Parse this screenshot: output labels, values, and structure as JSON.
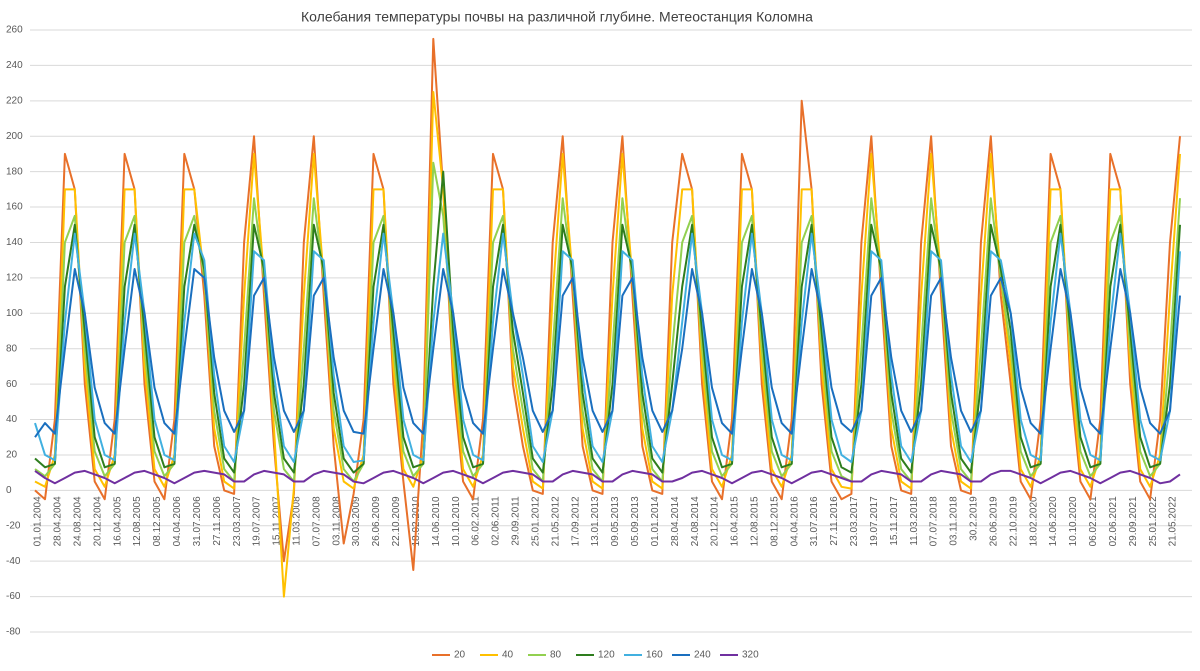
{
  "chart_data": {
    "type": "line",
    "title": "Колебания температуры почвы на различной глубине. Метеостанция Коломна",
    "categories": [
      "01.01.2004",
      null,
      "28.04.2004",
      null,
      "24.08.2004",
      null,
      "20.12.2004",
      null,
      "16.04.2005",
      null,
      "12.08.2005",
      null,
      "08.12.2005",
      null,
      "04.04.2006",
      null,
      "31.07.2006",
      null,
      "27.11.2006",
      null,
      "23.03.2007",
      null,
      "19.07.2007",
      null,
      "15.11.2007",
      null,
      "11.03.2008",
      null,
      "07.07.2008",
      null,
      "03.11.2008",
      null,
      "30.03.2009",
      null,
      "26.06.2009",
      null,
      "22.10.2009",
      null,
      "18.02.2010",
      null,
      "14.06.2010",
      null,
      "10.10.2010",
      null,
      "06.02.2011",
      null,
      "02.06.2011",
      null,
      "29.09.2011",
      null,
      "25.01.2012",
      null,
      "21.05.2012",
      null,
      "17.09.2012",
      null,
      "13.01.2013",
      null,
      "09.05.2013",
      null,
      "05.09.2013",
      null,
      "01.01.2014",
      null,
      "28.04.2014",
      null,
      "24.08.2014",
      null,
      "20.12.2014",
      null,
      "16.04.2015",
      null,
      "12.08.2015",
      null,
      "08.12.2015",
      null,
      "04.04.2016",
      null,
      "31.07.2016",
      null,
      "27.11.2016",
      null,
      "23.03.2017",
      null,
      "19.07.2017",
      null,
      "15.11.2017",
      null,
      "11.03.2018",
      null,
      "07.07.2018",
      null,
      "03.11.2018",
      null,
      "30.2.2019",
      null,
      "26.06.2019",
      null,
      "22.10.2019",
      null,
      "18.02.2020",
      null,
      "14.06.2020",
      null,
      "10.10.2020",
      null,
      "06.02.2021",
      null,
      "02.06.2021",
      null,
      "29.09.2021",
      null,
      "25.01.2022",
      null,
      "21.05.2022",
      null
    ],
    "series": [
      {
        "name": "20",
        "color": "#e8702a",
        "values": [
          0,
          -5,
          40,
          190,
          170,
          60,
          5,
          -5,
          40,
          190,
          170,
          60,
          5,
          -5,
          40,
          190,
          170,
          110,
          25,
          0,
          -2,
          140,
          200,
          110,
          25,
          -40,
          -2,
          140,
          200,
          110,
          25,
          -30,
          -2,
          40,
          190,
          170,
          60,
          5,
          -45,
          40,
          255,
          170,
          60,
          5,
          -5,
          40,
          190,
          170,
          60,
          25,
          0,
          -2,
          140,
          200,
          110,
          25,
          0,
          -2,
          140,
          200,
          110,
          25,
          0,
          -2,
          140,
          190,
          170,
          60,
          5,
          -5,
          40,
          190,
          170,
          60,
          5,
          -5,
          40,
          220,
          170,
          60,
          5,
          -5,
          -2,
          140,
          200,
          110,
          25,
          0,
          -2,
          140,
          200,
          110,
          25,
          0,
          -2,
          140,
          200,
          110,
          60,
          5,
          -5,
          40,
          190,
          170,
          60,
          5,
          -5,
          40,
          190,
          170,
          60,
          5,
          -5,
          40,
          140,
          200
        ]
      },
      {
        "name": "40",
        "color": "#ffc000",
        "values": [
          5,
          2,
          20,
          170,
          170,
          70,
          12,
          2,
          20,
          170,
          170,
          70,
          12,
          2,
          20,
          170,
          170,
          120,
          35,
          5,
          1,
          110,
          190,
          120,
          35,
          -60,
          1,
          110,
          190,
          120,
          35,
          5,
          1,
          20,
          170,
          170,
          70,
          12,
          2,
          20,
          225,
          170,
          70,
          12,
          2,
          20,
          170,
          170,
          70,
          35,
          5,
          1,
          110,
          190,
          120,
          35,
          5,
          1,
          110,
          190,
          120,
          35,
          5,
          1,
          110,
          170,
          170,
          70,
          12,
          2,
          20,
          170,
          170,
          70,
          12,
          2,
          20,
          170,
          170,
          70,
          12,
          2,
          1,
          110,
          190,
          120,
          35,
          5,
          1,
          110,
          190,
          120,
          35,
          5,
          1,
          110,
          190,
          120,
          70,
          12,
          2,
          20,
          170,
          170,
          70,
          12,
          2,
          20,
          170,
          170,
          70,
          12,
          2,
          20,
          110,
          190
        ]
      },
      {
        "name": "80",
        "color": "#92d050",
        "values": [
          12,
          8,
          15,
          140,
          155,
          80,
          22,
          8,
          15,
          140,
          155,
          80,
          22,
          8,
          15,
          140,
          155,
          120,
          45,
          12,
          5,
          80,
          165,
          120,
          45,
          12,
          5,
          80,
          165,
          120,
          45,
          12,
          5,
          15,
          140,
          155,
          80,
          22,
          8,
          15,
          185,
          155,
          80,
          22,
          8,
          15,
          140,
          155,
          80,
          45,
          12,
          5,
          80,
          165,
          120,
          45,
          12,
          5,
          80,
          165,
          120,
          45,
          12,
          5,
          80,
          140,
          155,
          80,
          22,
          8,
          15,
          140,
          155,
          80,
          22,
          8,
          15,
          140,
          155,
          80,
          22,
          8,
          5,
          80,
          165,
          120,
          45,
          12,
          5,
          80,
          165,
          120,
          45,
          12,
          5,
          80,
          165,
          120,
          80,
          22,
          8,
          15,
          140,
          155,
          80,
          22,
          8,
          15,
          140,
          155,
          80,
          22,
          8,
          15,
          80,
          165
        ]
      },
      {
        "name": "120",
        "color": "#2e7d1e",
        "values": [
          18,
          13,
          15,
          115,
          150,
          90,
          30,
          13,
          15,
          115,
          150,
          90,
          30,
          13,
          15,
          115,
          150,
          125,
          55,
          18,
          10,
          60,
          150,
          125,
          55,
          18,
          10,
          60,
          150,
          125,
          55,
          18,
          10,
          15,
          115,
          150,
          90,
          30,
          13,
          15,
          115,
          180,
          90,
          30,
          13,
          15,
          115,
          150,
          90,
          55,
          18,
          10,
          60,
          150,
          125,
          55,
          18,
          10,
          60,
          150,
          125,
          55,
          18,
          10,
          60,
          115,
          150,
          90,
          30,
          13,
          15,
          115,
          150,
          90,
          30,
          13,
          15,
          115,
          150,
          90,
          30,
          13,
          10,
          60,
          150,
          125,
          55,
          18,
          10,
          60,
          150,
          125,
          55,
          18,
          10,
          60,
          150,
          125,
          90,
          30,
          13,
          15,
          115,
          150,
          90,
          30,
          13,
          15,
          115,
          150,
          90,
          30,
          13,
          15,
          60,
          150
        ]
      },
      {
        "name": "160",
        "color": "#41b0e0",
        "values": [
          38,
          20,
          17,
          95,
          145,
          100,
          40,
          20,
          17,
          95,
          145,
          100,
          40,
          20,
          17,
          95,
          145,
          130,
          65,
          25,
          16,
          45,
          135,
          130,
          65,
          25,
          16,
          45,
          135,
          130,
          65,
          25,
          16,
          17,
          95,
          145,
          100,
          40,
          20,
          17,
          95,
          145,
          100,
          40,
          20,
          17,
          95,
          145,
          100,
          65,
          25,
          16,
          45,
          135,
          130,
          65,
          25,
          16,
          45,
          135,
          130,
          65,
          25,
          16,
          45,
          95,
          145,
          100,
          40,
          20,
          17,
          95,
          145,
          100,
          40,
          20,
          17,
          95,
          145,
          100,
          40,
          20,
          16,
          45,
          135,
          130,
          65,
          25,
          16,
          45,
          135,
          130,
          65,
          25,
          16,
          45,
          135,
          130,
          100,
          40,
          20,
          17,
          95,
          145,
          100,
          40,
          20,
          17,
          95,
          145,
          100,
          40,
          20,
          17,
          45,
          135
        ]
      },
      {
        "name": "240",
        "color": "#1a6fbf",
        "values": [
          30,
          38,
          32,
          80,
          125,
          100,
          58,
          38,
          32,
          80,
          125,
          100,
          58,
          38,
          32,
          80,
          125,
          120,
          75,
          45,
          33,
          45,
          110,
          120,
          75,
          45,
          33,
          45,
          110,
          120,
          75,
          45,
          33,
          32,
          80,
          125,
          100,
          58,
          38,
          32,
          80,
          125,
          100,
          58,
          38,
          32,
          80,
          125,
          100,
          75,
          45,
          33,
          45,
          110,
          120,
          75,
          45,
          33,
          45,
          110,
          120,
          75,
          45,
          33,
          45,
          80,
          125,
          100,
          58,
          38,
          32,
          80,
          125,
          100,
          58,
          38,
          32,
          80,
          125,
          100,
          58,
          38,
          33,
          45,
          110,
          120,
          75,
          45,
          33,
          45,
          110,
          120,
          75,
          45,
          33,
          45,
          110,
          120,
          100,
          58,
          38,
          32,
          80,
          125,
          100,
          58,
          38,
          32,
          80,
          125,
          100,
          58,
          38,
          32,
          45,
          110
        ]
      },
      {
        "name": "320",
        "color": "#7030a0",
        "values": [
          11,
          7,
          4,
          7,
          10,
          11,
          9,
          7,
          4,
          7,
          10,
          11,
          9,
          7,
          4,
          7,
          10,
          11,
          10,
          9,
          5,
          5,
          9,
          11,
          10,
          9,
          5,
          5,
          9,
          11,
          10,
          9,
          5,
          4,
          7,
          10,
          11,
          9,
          7,
          4,
          7,
          10,
          11,
          9,
          7,
          4,
          7,
          10,
          11,
          10,
          9,
          5,
          5,
          9,
          11,
          10,
          9,
          5,
          5,
          9,
          11,
          10,
          9,
          5,
          5,
          7,
          10,
          11,
          9,
          7,
          4,
          7,
          10,
          11,
          9,
          7,
          4,
          7,
          10,
          11,
          9,
          7,
          5,
          5,
          9,
          11,
          10,
          9,
          5,
          5,
          9,
          11,
          10,
          9,
          5,
          5,
          9,
          11,
          11,
          9,
          7,
          4,
          7,
          10,
          11,
          9,
          7,
          4,
          7,
          10,
          11,
          9,
          7,
          4,
          5,
          9
        ]
      }
    ],
    "ylim": [
      -80,
      260
    ],
    "yticks": [
      -80,
      -60,
      -40,
      -20,
      0,
      20,
      40,
      60,
      80,
      100,
      120,
      140,
      160,
      180,
      200,
      220,
      240,
      260
    ],
    "grid": true,
    "legend": "bottom"
  }
}
